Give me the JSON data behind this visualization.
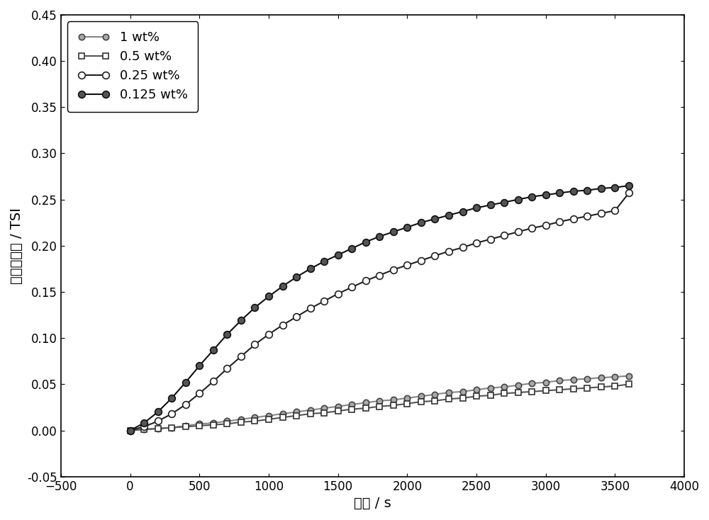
{
  "title": "",
  "xlabel": "时间 / s",
  "ylabel": "稳定性指数 / TSI",
  "xlim": [
    -500,
    4000
  ],
  "ylim": [
    -0.05,
    0.45
  ],
  "xticks": [
    -500,
    0,
    500,
    1000,
    1500,
    2000,
    2500,
    3000,
    3500,
    4000
  ],
  "yticks": [
    -0.05,
    0.0,
    0.05,
    0.1,
    0.15,
    0.2,
    0.25,
    0.3,
    0.35,
    0.4,
    0.45
  ],
  "series": [
    {
      "label": "1 wt%",
      "line_color": "#888888",
      "marker": "o",
      "marker_face": "#aaaaaa",
      "marker_edge": "#444444",
      "linewidth": 1.5,
      "markersize": 6,
      "x": [
        0,
        100,
        200,
        300,
        400,
        500,
        600,
        700,
        800,
        900,
        1000,
        1100,
        1200,
        1300,
        1400,
        1500,
        1600,
        1700,
        1800,
        1900,
        2000,
        2100,
        2200,
        2300,
        2400,
        2500,
        2600,
        2700,
        2800,
        2900,
        3000,
        3100,
        3200,
        3300,
        3400,
        3500,
        3600
      ],
      "y": [
        0.0,
        0.001,
        0.002,
        0.003,
        0.005,
        0.007,
        0.008,
        0.01,
        0.012,
        0.014,
        0.016,
        0.018,
        0.02,
        0.022,
        0.024,
        0.026,
        0.028,
        0.03,
        0.032,
        0.033,
        0.035,
        0.037,
        0.039,
        0.041,
        0.042,
        0.044,
        0.046,
        0.047,
        0.049,
        0.051,
        0.052,
        0.054,
        0.055,
        0.056,
        0.057,
        0.058,
        0.059
      ]
    },
    {
      "label": "0.5 wt%",
      "line_color": "#555555",
      "marker": "s",
      "marker_face": "#ffffff",
      "marker_edge": "#333333",
      "linewidth": 1.5,
      "markersize": 6,
      "x": [
        0,
        100,
        200,
        300,
        400,
        500,
        600,
        700,
        800,
        900,
        1000,
        1100,
        1200,
        1300,
        1400,
        1500,
        1600,
        1700,
        1800,
        1900,
        2000,
        2100,
        2200,
        2300,
        2400,
        2500,
        2600,
        2700,
        2800,
        2900,
        3000,
        3100,
        3200,
        3300,
        3400,
        3500,
        3600
      ],
      "y": [
        0.0,
        0.001,
        0.002,
        0.003,
        0.004,
        0.005,
        0.006,
        0.007,
        0.009,
        0.01,
        0.012,
        0.014,
        0.016,
        0.018,
        0.019,
        0.021,
        0.023,
        0.024,
        0.026,
        0.027,
        0.029,
        0.031,
        0.032,
        0.034,
        0.035,
        0.037,
        0.038,
        0.04,
        0.041,
        0.042,
        0.043,
        0.044,
        0.045,
        0.046,
        0.047,
        0.048,
        0.05
      ]
    },
    {
      "label": "0.25 wt%",
      "line_color": "#222222",
      "marker": "o",
      "marker_face": "#ffffff",
      "marker_edge": "#222222",
      "linewidth": 1.5,
      "markersize": 7,
      "x": [
        0,
        100,
        200,
        300,
        400,
        500,
        600,
        700,
        800,
        900,
        1000,
        1100,
        1200,
        1300,
        1400,
        1500,
        1600,
        1700,
        1800,
        1900,
        2000,
        2100,
        2200,
        2300,
        2400,
        2500,
        2600,
        2700,
        2800,
        2900,
        3000,
        3100,
        3200,
        3300,
        3400,
        3500,
        3600
      ],
      "y": [
        0.0,
        0.004,
        0.01,
        0.018,
        0.028,
        0.04,
        0.053,
        0.067,
        0.08,
        0.093,
        0.104,
        0.114,
        0.123,
        0.132,
        0.14,
        0.148,
        0.155,
        0.162,
        0.168,
        0.174,
        0.179,
        0.184,
        0.189,
        0.194,
        0.198,
        0.203,
        0.207,
        0.211,
        0.215,
        0.219,
        0.222,
        0.226,
        0.229,
        0.232,
        0.235,
        0.238,
        0.257
      ]
    },
    {
      "label": "0.125 wt%",
      "line_color": "#111111",
      "marker": "o",
      "marker_face": "#555555",
      "marker_edge": "#111111",
      "linewidth": 1.5,
      "markersize": 7,
      "x": [
        0,
        100,
        200,
        300,
        400,
        500,
        600,
        700,
        800,
        900,
        1000,
        1100,
        1200,
        1300,
        1400,
        1500,
        1600,
        1700,
        1800,
        1900,
        2000,
        2100,
        2200,
        2300,
        2400,
        2500,
        2600,
        2700,
        2800,
        2900,
        3000,
        3100,
        3200,
        3300,
        3400,
        3500,
        3600
      ],
      "y": [
        0.0,
        0.008,
        0.02,
        0.035,
        0.052,
        0.07,
        0.087,
        0.104,
        0.119,
        0.133,
        0.145,
        0.156,
        0.166,
        0.175,
        0.183,
        0.19,
        0.197,
        0.204,
        0.21,
        0.215,
        0.22,
        0.225,
        0.229,
        0.233,
        0.237,
        0.241,
        0.244,
        0.247,
        0.25,
        0.253,
        0.255,
        0.257,
        0.259,
        0.26,
        0.262,
        0.263,
        0.265
      ]
    }
  ],
  "background_color": "#ffffff",
  "legend_loc": "upper left",
  "legend_fontsize": 13,
  "tick_fontsize": 12,
  "label_fontsize": 14
}
